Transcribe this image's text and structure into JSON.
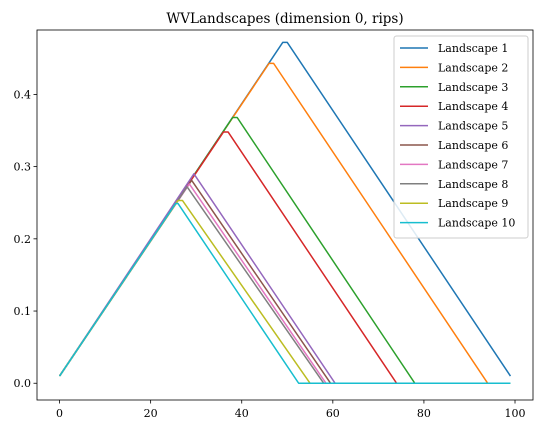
{
  "chart_data": {
    "type": "line",
    "title": "WVLandscapes (dimension 0, rips)",
    "xlabel": "",
    "ylabel": "",
    "xlim": [
      -4.95,
      103.95
    ],
    "ylim": [
      -0.0232,
      0.4892
    ],
    "x_ticks": [
      0,
      20,
      40,
      60,
      80,
      100
    ],
    "x_tick_labels": [
      "0",
      "20",
      "40",
      "60",
      "80",
      "100"
    ],
    "y_ticks": [
      0.0,
      0.1,
      0.2,
      0.3,
      0.4
    ],
    "y_tick_labels": [
      "0.0",
      "0.1",
      "0.2",
      "0.3",
      "0.4"
    ],
    "grid": false,
    "legend_position": "top-right",
    "series": [
      {
        "name": "Landscape 1",
        "color": "#1f77b4",
        "x": [
          0,
          49,
          50,
          99
        ],
        "y": [
          0.01,
          0.472,
          0.472,
          0.01
        ]
      },
      {
        "name": "Landscape 2",
        "color": "#ff7f0e",
        "x": [
          0,
          46,
          47,
          94,
          99
        ],
        "y": [
          0.01,
          0.443,
          0.443,
          0.0,
          0.0
        ]
      },
      {
        "name": "Landscape 3",
        "color": "#2ca02c",
        "x": [
          0,
          38,
          39,
          78,
          99
        ],
        "y": [
          0.01,
          0.368,
          0.368,
          0.0,
          0.0
        ]
      },
      {
        "name": "Landscape 4",
        "color": "#d62728",
        "x": [
          0,
          36,
          37,
          74,
          99
        ],
        "y": [
          0.01,
          0.348,
          0.348,
          0.0,
          0.0
        ]
      },
      {
        "name": "Landscape 5",
        "color": "#9467bd",
        "x": [
          0,
          29.5,
          60.5,
          99
        ],
        "y": [
          0.01,
          0.29,
          0.0,
          0.0
        ]
      },
      {
        "name": "Landscape 6",
        "color": "#8c564b",
        "x": [
          0,
          29,
          59.5,
          99
        ],
        "y": [
          0.01,
          0.281,
          0.0,
          0.0
        ]
      },
      {
        "name": "Landscape 7",
        "color": "#e377c2",
        "x": [
          0,
          28.5,
          58.5,
          99
        ],
        "y": [
          0.01,
          0.276,
          0.0,
          0.0
        ]
      },
      {
        "name": "Landscape 8",
        "color": "#7f7f7f",
        "x": [
          0,
          28,
          58,
          99
        ],
        "y": [
          0.01,
          0.272,
          0.0,
          0.0
        ]
      },
      {
        "name": "Landscape 9",
        "color": "#bcbd22",
        "x": [
          0,
          26,
          27,
          55,
          99
        ],
        "y": [
          0.01,
          0.253,
          0.253,
          0.0,
          0.0
        ]
      },
      {
        "name": "Landscape 10",
        "color": "#17becf",
        "x": [
          0,
          25.5,
          26,
          52.5,
          99
        ],
        "y": [
          0.01,
          0.249,
          0.249,
          0.0,
          0.0
        ]
      }
    ]
  }
}
